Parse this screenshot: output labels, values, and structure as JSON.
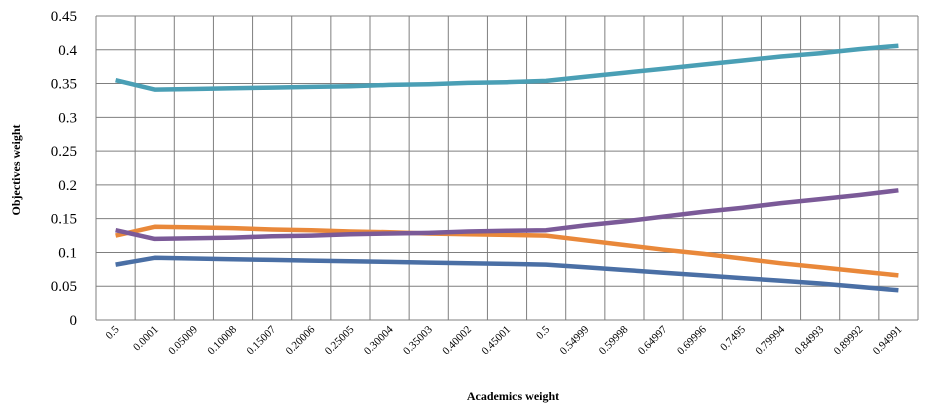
{
  "chart_data": {
    "type": "line",
    "title": "",
    "xlabel": "Academics weight",
    "ylabel": "Objectives weight",
    "ylim": [
      0,
      0.45
    ],
    "y_ticks": [
      "0",
      "0.05",
      "0.1",
      "0.15",
      "0.2",
      "0.25",
      "0.3",
      "0.35",
      "0.4",
      "0.45"
    ],
    "categories": [
      "0.5",
      "0.0001",
      "0.05009",
      "0.10008",
      "0.15007",
      "0.20006",
      "0.25005",
      "0.30004",
      "0.35003",
      "0.40002",
      "0.45001",
      "0.5",
      "0.54999",
      "0.59998",
      "0.64997",
      "0.69996",
      "0.7495",
      "0.79994",
      "0.84993",
      "0.89992",
      "0.94991"
    ],
    "grid": true,
    "legend": "none",
    "series": [
      {
        "color": "#4a6fa5",
        "values": [
          0.082,
          0.092,
          0.091,
          0.09,
          0.089,
          0.088,
          0.087,
          0.086,
          0.085,
          0.084,
          0.083,
          0.082,
          0.078,
          0.074,
          0.07,
          0.066,
          0.062,
          0.058,
          0.054,
          0.049,
          0.044
        ]
      },
      {
        "color": "#e9883a",
        "values": [
          0.125,
          0.138,
          0.137,
          0.136,
          0.134,
          0.133,
          0.131,
          0.13,
          0.128,
          0.127,
          0.126,
          0.125,
          0.118,
          0.111,
          0.104,
          0.098,
          0.091,
          0.084,
          0.078,
          0.072,
          0.066
        ]
      },
      {
        "color": "#7b5a98",
        "values": [
          0.133,
          0.12,
          0.121,
          0.122,
          0.124,
          0.125,
          0.127,
          0.128,
          0.129,
          0.131,
          0.132,
          0.133,
          0.14,
          0.146,
          0.153,
          0.16,
          0.166,
          0.173,
          0.179,
          0.185,
          0.192
        ]
      },
      {
        "color": "#4a9fb5",
        "values": [
          0.355,
          0.341,
          0.342,
          0.343,
          0.344,
          0.345,
          0.346,
          0.348,
          0.349,
          0.351,
          0.352,
          0.354,
          0.36,
          0.366,
          0.372,
          0.378,
          0.384,
          0.39,
          0.395,
          0.401,
          0.406
        ]
      }
    ]
  }
}
